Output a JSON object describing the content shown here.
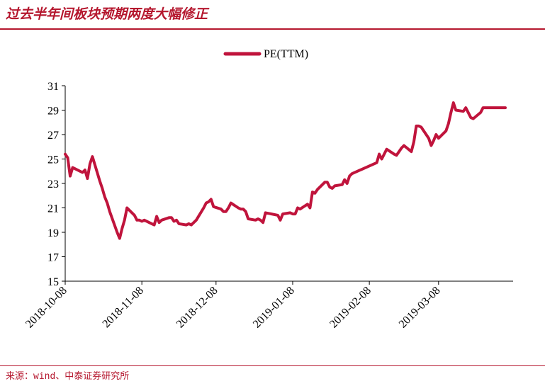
{
  "header": {
    "title": "过去半年间板块预期两度大幅修正"
  },
  "footer": {
    "source": "来源：wind、中泰证券研究所"
  },
  "colors": {
    "accent": "#b5172e",
    "line": "#c0143c",
    "axis": "#000000"
  },
  "chart_data": {
    "type": "line",
    "title": "",
    "xlabel": "",
    "ylabel": "",
    "ylim": [
      15,
      31
    ],
    "yticks": [
      15,
      17,
      19,
      21,
      23,
      25,
      27,
      29,
      31
    ],
    "xlim": [
      "2018-10-08",
      "2019-04-06"
    ],
    "xticks": [
      "2018-10-08",
      "2018-11-08",
      "2018-12-08",
      "2019-01-08",
      "2019-02-08",
      "2019-03-08"
    ],
    "legend": "top-center",
    "grid": false,
    "series": [
      {
        "name": "PE(TTM)",
        "x": [
          "2018-10-08",
          "2018-10-09",
          "2018-10-10",
          "2018-10-11",
          "2018-10-12",
          "2018-10-15",
          "2018-10-16",
          "2018-10-17",
          "2018-10-18",
          "2018-10-19",
          "2018-10-22",
          "2018-10-23",
          "2018-10-24",
          "2018-10-25",
          "2018-10-26",
          "2018-10-29",
          "2018-10-30",
          "2018-10-31",
          "2018-11-01",
          "2018-11-02",
          "2018-11-05",
          "2018-11-06",
          "2018-11-07",
          "2018-11-08",
          "2018-11-09",
          "2018-11-12",
          "2018-11-13",
          "2018-11-14",
          "2018-11-15",
          "2018-11-16",
          "2018-11-19",
          "2018-11-20",
          "2018-11-21",
          "2018-11-22",
          "2018-11-23",
          "2018-11-26",
          "2018-11-27",
          "2018-11-28",
          "2018-11-29",
          "2018-11-30",
          "2018-12-03",
          "2018-12-04",
          "2018-12-05",
          "2018-12-06",
          "2018-12-07",
          "2018-12-10",
          "2018-12-11",
          "2018-12-12",
          "2018-12-13",
          "2018-12-14",
          "2018-12-17",
          "2018-12-18",
          "2018-12-19",
          "2018-12-20",
          "2018-12-21",
          "2018-12-24",
          "2018-12-25",
          "2018-12-26",
          "2018-12-27",
          "2018-12-28",
          "2019-01-02",
          "2019-01-03",
          "2019-01-04",
          "2019-01-07",
          "2019-01-08",
          "2019-01-09",
          "2019-01-10",
          "2019-01-11",
          "2019-01-14",
          "2019-01-15",
          "2019-01-16",
          "2019-01-17",
          "2019-01-18",
          "2019-01-21",
          "2019-01-22",
          "2019-01-23",
          "2019-01-24",
          "2019-01-25",
          "2019-01-28",
          "2019-01-29",
          "2019-01-30",
          "2019-01-31",
          "2019-02-01",
          "2019-02-11",
          "2019-02-12",
          "2019-02-13",
          "2019-02-14",
          "2019-02-15",
          "2019-02-18",
          "2019-02-19",
          "2019-02-20",
          "2019-02-21",
          "2019-02-22",
          "2019-02-25",
          "2019-02-26",
          "2019-02-27",
          "2019-02-28",
          "2019-03-01",
          "2019-03-04",
          "2019-03-05",
          "2019-03-06",
          "2019-03-07",
          "2019-03-08",
          "2019-03-11",
          "2019-03-12",
          "2019-03-13",
          "2019-03-14",
          "2019-03-15",
          "2019-03-18",
          "2019-03-19",
          "2019-03-20",
          "2019-03-21",
          "2019-03-22",
          "2019-03-25",
          "2019-03-26",
          "2019-03-27",
          "2019-03-28",
          "2019-03-29",
          "2019-04-01",
          "2019-04-02",
          "2019-04-03",
          "2019-04-04"
        ],
        "values": [
          25.4,
          25.1,
          23.6,
          24.3,
          24.2,
          23.9,
          24.1,
          23.4,
          24.6,
          25.2,
          23.2,
          22.6,
          21.9,
          21.4,
          20.7,
          19.0,
          18.5,
          19.3,
          20.0,
          21.0,
          20.4,
          20.0,
          20.0,
          19.9,
          20.0,
          19.7,
          19.6,
          20.3,
          19.8,
          20.0,
          20.2,
          20.2,
          19.9,
          20.0,
          19.7,
          19.6,
          19.7,
          19.6,
          19.8,
          20.0,
          21.0,
          21.4,
          21.5,
          21.7,
          21.1,
          20.9,
          20.7,
          20.7,
          21.0,
          21.4,
          21.0,
          20.9,
          20.9,
          20.7,
          20.1,
          20.0,
          20.1,
          20.0,
          19.8,
          20.6,
          20.4,
          20.0,
          20.5,
          20.6,
          20.5,
          20.5,
          21.0,
          20.9,
          21.3,
          21.0,
          22.3,
          22.2,
          22.5,
          23.1,
          23.1,
          22.7,
          22.6,
          22.8,
          22.9,
          23.3,
          23.0,
          23.6,
          23.8,
          24.7,
          25.4,
          25.0,
          25.4,
          25.8,
          25.4,
          25.3,
          25.6,
          25.9,
          26.1,
          25.6,
          26.4,
          27.7,
          27.7,
          27.6,
          26.7,
          26.1,
          26.5,
          27.0,
          26.7,
          27.3,
          27.9,
          28.8,
          29.6,
          29.0,
          28.9,
          29.2,
          28.8,
          28.4,
          28.3,
          28.8,
          29.2,
          29.2,
          29.2,
          29.2,
          29.2,
          29.2,
          29.2,
          29.2
        ]
      }
    ]
  }
}
